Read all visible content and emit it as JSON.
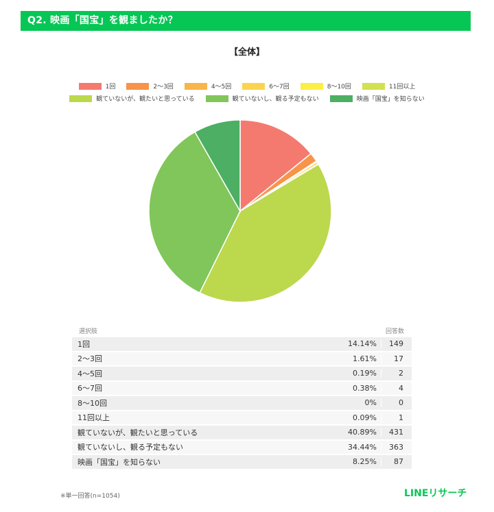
{
  "header": {
    "title": "Q2. 映画「国宝」を観ましたか？"
  },
  "section_title": "【全体】",
  "table": {
    "header_label": "選択肢",
    "header_count": "回答数"
  },
  "footnote": "※単一回答(n=1054)",
  "logo": "LINEリサーチ",
  "chart_data": {
    "type": "pie",
    "title": "【全体】",
    "legend_position": "top",
    "categories": [
      "1回",
      "2〜3回",
      "4〜5回",
      "6〜7回",
      "8〜10回",
      "11回以上",
      "観ていないが、観たいと思っている",
      "観ていないし、観る予定もない",
      "映画「国宝」を知らない"
    ],
    "percent_labels": [
      "14.14%",
      "1.61%",
      "0.19%",
      "0.38%",
      "0%",
      "0.09%",
      "40.89%",
      "34.44%",
      "8.25%"
    ],
    "values": [
      14.14,
      1.61,
      0.19,
      0.38,
      0,
      0.09,
      40.89,
      34.44,
      8.25
    ],
    "counts": [
      149,
      17,
      2,
      4,
      0,
      1,
      431,
      363,
      87
    ],
    "colors": [
      "#f47a70",
      "#f7944a",
      "#f9b54a",
      "#fbd44f",
      "#fbef45",
      "#d3e04f",
      "#bcd84d",
      "#81c65a",
      "#4caf64"
    ]
  }
}
